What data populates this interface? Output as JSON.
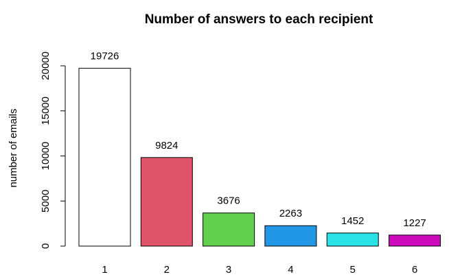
{
  "chart_data": {
    "type": "bar",
    "title": "Number of answers to each recipient",
    "xlabel": "",
    "ylabel": "number of emails",
    "categories": [
      "1",
      "2",
      "3",
      "4",
      "5",
      "6"
    ],
    "values": [
      19726,
      9824,
      3676,
      2263,
      1452,
      1227
    ],
    "data_labels": [
      "19726",
      "9824",
      "3676",
      "2263",
      "1452",
      "1227"
    ],
    "colors": [
      "#FFFFFF",
      "#DF536B",
      "#61D04F",
      "#2297E6",
      "#28E2E5",
      "#CD0BBC"
    ],
    "yticks": [
      0,
      5000,
      10000,
      15000,
      20000
    ],
    "ytick_labels": [
      "0",
      "5000",
      "10000",
      "15000",
      "20000"
    ],
    "ylim": [
      0,
      20000
    ],
    "grid": false,
    "legend": "none"
  }
}
